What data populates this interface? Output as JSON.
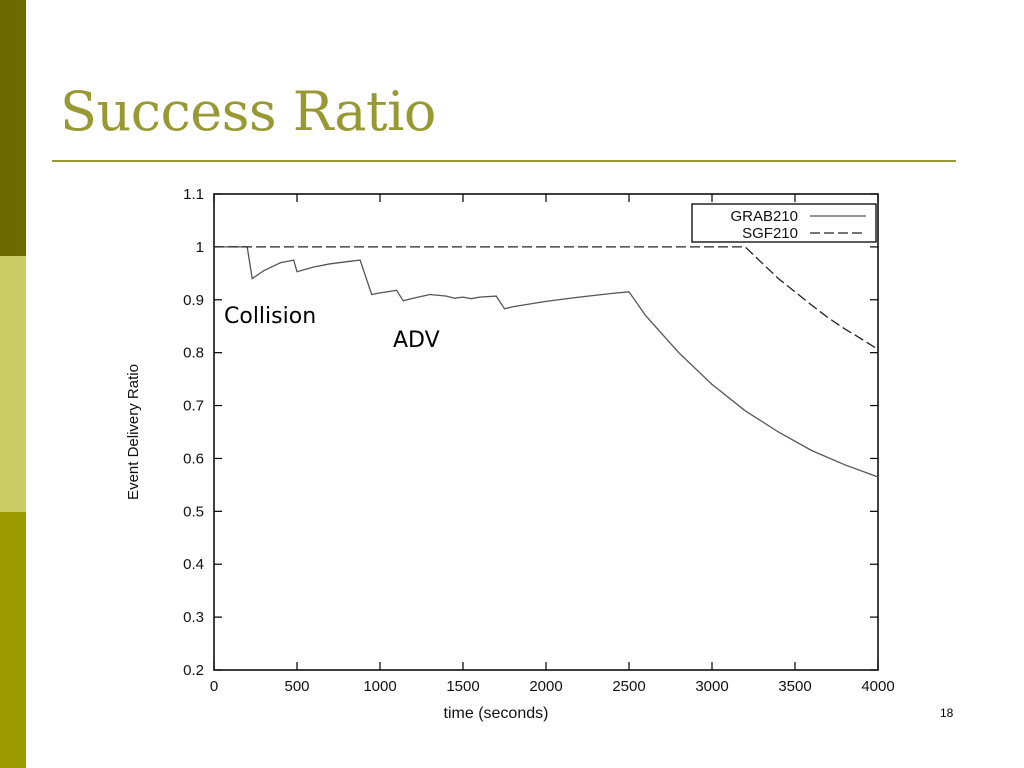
{
  "slide": {
    "title": "Success Ratio",
    "page_number": "18",
    "side_colors": [
      "#6b6b00",
      "#cccc66",
      "#9c9c00"
    ],
    "accent": "#999933"
  },
  "chart_data": {
    "type": "line",
    "xlabel": "time (seconds)",
    "ylabel": "Event Delivery Ratio",
    "xlim": [
      0,
      4000
    ],
    "ylim": [
      0.2,
      1.1
    ],
    "x_ticks": [
      0,
      500,
      1000,
      1500,
      2000,
      2500,
      3000,
      3500,
      4000
    ],
    "y_ticks": [
      0.2,
      0.3,
      0.4,
      0.5,
      0.6,
      0.7,
      0.8,
      0.9,
      1,
      1.1
    ],
    "x_tick_labels": [
      "0",
      "500",
      "1000",
      "1500",
      "2000",
      "2500",
      "3000",
      "3500",
      "4000"
    ],
    "y_tick_labels": [
      "0.2",
      "0.3",
      "0.4",
      "0.5",
      "0.6",
      "0.7",
      "0.8",
      "0.9",
      "1",
      "1.1"
    ],
    "grid": false,
    "legend_position": "top-right",
    "series": [
      {
        "name": "GRAB210",
        "style": "solid",
        "x": [
          0,
          200,
          230,
          300,
          400,
          480,
          500,
          600,
          700,
          800,
          880,
          950,
          1000,
          1100,
          1140,
          1200,
          1300,
          1400,
          1450,
          1500,
          1550,
          1600,
          1700,
          1750,
          1800,
          2000,
          2200,
          2400,
          2500,
          2600,
          2800,
          3000,
          3200,
          3400,
          3600,
          3800,
          4000
        ],
        "y": [
          1.0,
          1.0,
          0.94,
          0.955,
          0.97,
          0.975,
          0.953,
          0.962,
          0.968,
          0.972,
          0.975,
          0.91,
          0.913,
          0.918,
          0.898,
          0.903,
          0.91,
          0.907,
          0.903,
          0.905,
          0.902,
          0.905,
          0.907,
          0.883,
          0.887,
          0.897,
          0.905,
          0.912,
          0.915,
          0.87,
          0.8,
          0.74,
          0.69,
          0.65,
          0.615,
          0.588,
          0.565
        ]
      },
      {
        "name": "SGF210",
        "style": "dashed",
        "x": [
          0,
          3200,
          3300,
          3400,
          3500,
          3600,
          3700,
          3800,
          3900,
          4000
        ],
        "y": [
          1.0,
          1.0,
          0.97,
          0.94,
          0.915,
          0.89,
          0.866,
          0.845,
          0.826,
          0.806
        ]
      }
    ],
    "annotations": [
      "Collision",
      "ADV"
    ]
  }
}
